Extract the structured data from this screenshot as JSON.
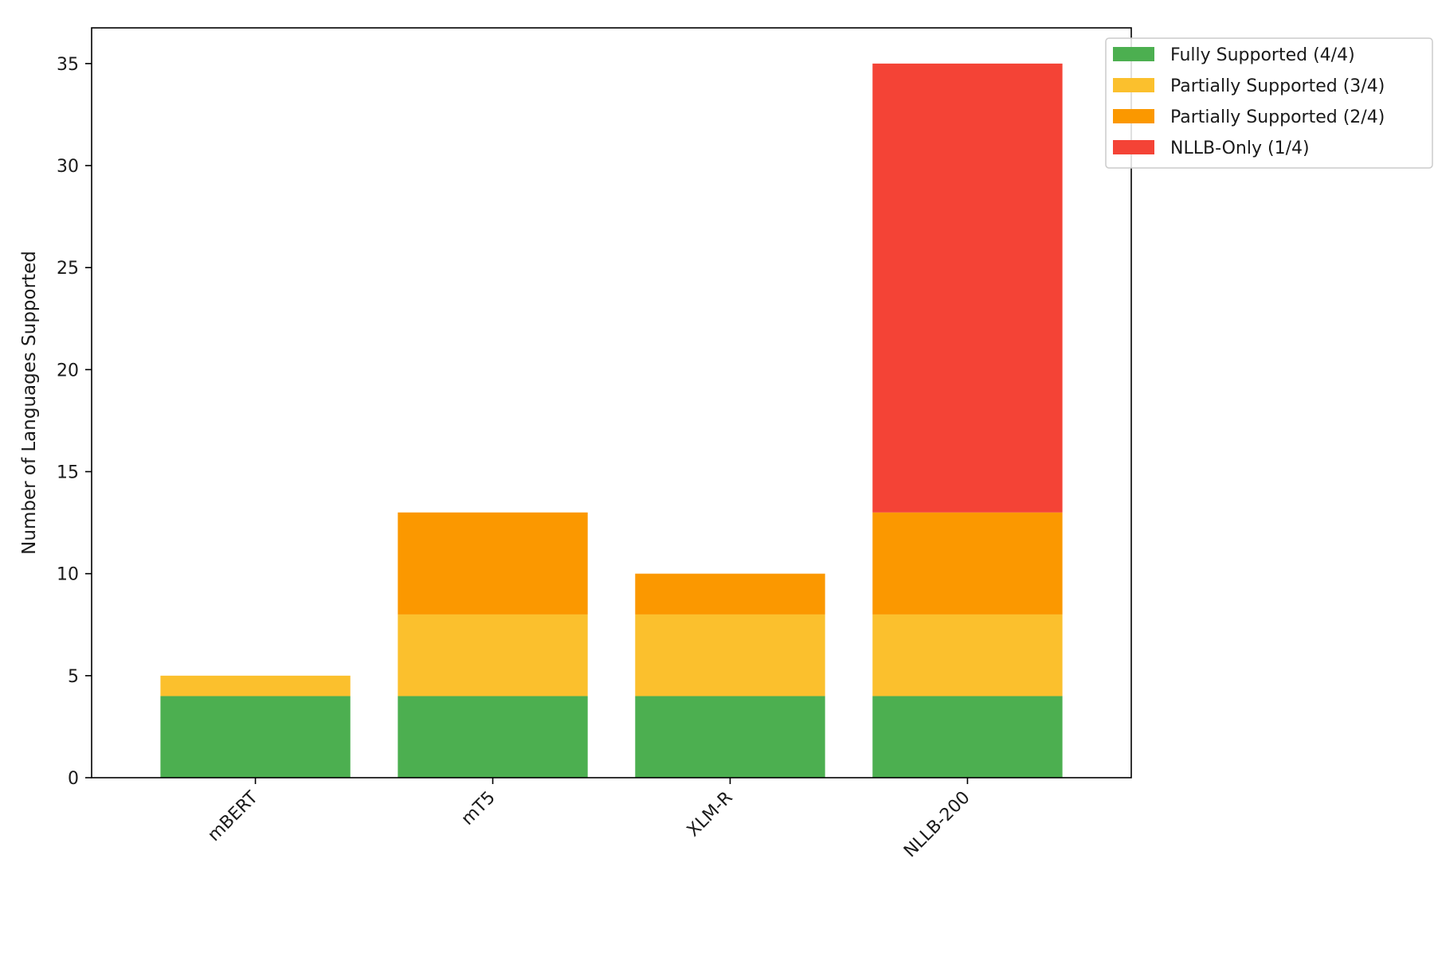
{
  "chart_data": {
    "type": "bar",
    "stacked": true,
    "categories": [
      "mBERT",
      "mT5",
      "XLM-R",
      "NLLB-200"
    ],
    "series": [
      {
        "name": "Fully Supported (4/4)",
        "color": "#4caf50",
        "values": [
          4,
          4,
          4,
          4
        ]
      },
      {
        "name": "Partially Supported (3/4)",
        "color": "#fbc02d",
        "values": [
          1,
          4,
          4,
          4
        ]
      },
      {
        "name": "Partially Supported (2/4)",
        "color": "#fb9800",
        "values": [
          0,
          5,
          2,
          5
        ]
      },
      {
        "name": "NLLB-Only (1/4)",
        "color": "#f44336",
        "values": [
          0,
          0,
          0,
          22
        ]
      }
    ],
    "title": "",
    "xlabel": "",
    "ylabel": "Number of Languages Supported",
    "ylim": [
      0,
      36.75
    ],
    "yticks": [
      0,
      5,
      10,
      15,
      20,
      25,
      30,
      35
    ],
    "grid": false,
    "legend_position": "top-right, outside plot area"
  }
}
